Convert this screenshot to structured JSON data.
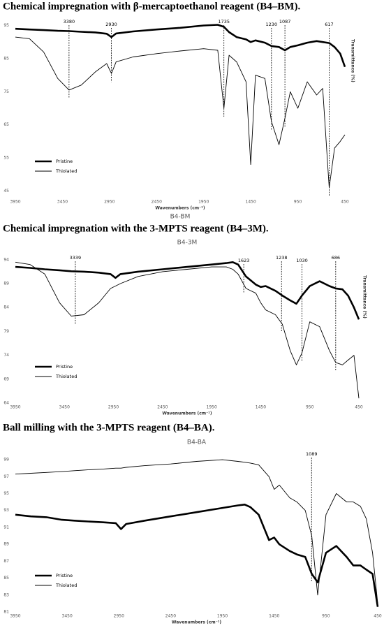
{
  "chart_data": [
    {
      "type": "line",
      "heading": "Chemical impregnation with β-mercaptoethanol reagent (B4–BM).",
      "title": "B4-BM",
      "x_label": "Wavenumbers (cm⁻¹)",
      "y_label": "Transmittance (%)",
      "x": [
        3950,
        3800,
        3650,
        3500,
        3380,
        3250,
        3100,
        2980,
        2930,
        2880,
        2700,
        2450,
        2200,
        1950,
        1800,
        1735,
        1680,
        1600,
        1500,
        1450,
        1400,
        1300,
        1230,
        1150,
        1087,
        1030,
        950,
        850,
        750,
        686,
        617,
        560,
        500,
        450
      ],
      "series": [
        {
          "name": "Pristine",
          "color": "#000000",
          "line_width": 2.6,
          "values": [
            94,
            93.8,
            93.6,
            93.4,
            93.3,
            93.1,
            92.9,
            92.5,
            91.5,
            92.6,
            93.2,
            93.8,
            94.3,
            95,
            95.2,
            94.6,
            93,
            91.5,
            90.8,
            90,
            90.5,
            89.8,
            88.8,
            88.5,
            87.5,
            88.5,
            89,
            89.8,
            90.3,
            90,
            89.7,
            88.5,
            86.5,
            82.5
          ]
        },
        {
          "name": "Thiolated",
          "color": "#000000",
          "line_width": 0.9,
          "values": [
            91.5,
            91,
            87,
            79,
            75.5,
            77,
            81,
            83.5,
            80.5,
            84,
            85.5,
            86.5,
            87.3,
            88,
            87.5,
            70,
            86,
            84,
            78,
            53,
            80,
            79,
            66,
            59,
            67,
            75,
            70,
            78,
            74,
            76,
            46,
            58,
            60,
            62
          ]
        }
      ],
      "peaks": [
        3380,
        2930,
        1735,
        1230,
        1087,
        617
      ],
      "xlim": [
        3950,
        450
      ],
      "xticks": [
        3950,
        3450,
        2950,
        2450,
        1950,
        1450,
        950,
        450
      ],
      "ylim": [
        43,
        97
      ],
      "yticks": [
        45,
        55,
        65,
        75,
        85,
        95
      ],
      "legend": "lower left"
    },
    {
      "type": "line",
      "heading": "Chemical impregnation with the 3-MPTS reagent (B4–3M).",
      "title": "B4-3M",
      "x_label": "Wavenumbers (cm⁻¹)",
      "y_label": "Transmittance (%)",
      "x": [
        3950,
        3800,
        3650,
        3500,
        3380,
        3250,
        3100,
        2980,
        2930,
        2880,
        2700,
        2450,
        2200,
        1950,
        1800,
        1735,
        1680,
        1600,
        1500,
        1450,
        1400,
        1300,
        1230,
        1150,
        1087,
        1030,
        950,
        850,
        750,
        686,
        617,
        560,
        500,
        450
      ],
      "series": [
        {
          "name": "Pristine",
          "color": "#000000",
          "line_width": 2.6,
          "values": [
            92.5,
            92.3,
            92,
            91.8,
            91.6,
            91.5,
            91.3,
            91,
            90.2,
            91,
            91.5,
            92,
            92.5,
            93,
            93.3,
            93.5,
            93,
            90.5,
            88.8,
            88.3,
            88.5,
            87.5,
            86.5,
            85.5,
            84.8,
            86.5,
            88.5,
            89.5,
            88.5,
            88,
            87.8,
            86.5,
            84,
            81.5
          ]
        },
        {
          "name": "Thiolated",
          "color": "#000000",
          "line_width": 0.9,
          "values": [
            93.5,
            93,
            91,
            85,
            82.2,
            82.5,
            85,
            88,
            88.5,
            89,
            90.5,
            91.5,
            92,
            92.5,
            92.5,
            92,
            91,
            88,
            87,
            85,
            83.5,
            82.5,
            80.5,
            75,
            72,
            74.5,
            81,
            80,
            75,
            72.5,
            72,
            73,
            74,
            65
          ]
        }
      ],
      "peaks": [
        3339,
        1623,
        1238,
        1030,
        686
      ],
      "xlim": [
        3950,
        450
      ],
      "xticks": [
        3950,
        3450,
        2950,
        2450,
        1950,
        1450,
        950,
        450
      ],
      "ylim": [
        64,
        95
      ],
      "yticks": [
        94,
        89,
        84,
        79,
        74,
        69,
        64
      ],
      "legend": "lower left"
    },
    {
      "type": "line",
      "heading": "Ball milling with the 3-MPTS reagent (B4–BA).",
      "title": "B4-BA",
      "x_label": "Wavenumbers (cm⁻¹)",
      "x": [
        3950,
        3800,
        3650,
        3500,
        3380,
        3250,
        3100,
        2980,
        2930,
        2880,
        2700,
        2450,
        2200,
        1950,
        1800,
        1735,
        1680,
        1600,
        1500,
        1450,
        1400,
        1300,
        1230,
        1150,
        1087,
        1030,
        950,
        850,
        750,
        686,
        617,
        560,
        500,
        450
      ],
      "series": [
        {
          "name": "Pristine",
          "color": "#000000",
          "line_width": 2.6,
          "values": [
            92.5,
            92.3,
            92.2,
            91.9,
            91.8,
            91.7,
            91.6,
            91.5,
            90.8,
            91.4,
            91.8,
            92.3,
            92.8,
            93.3,
            93.6,
            93.7,
            93.4,
            92.5,
            89.5,
            89.8,
            89,
            88.2,
            87.8,
            87.5,
            85.5,
            84.5,
            88,
            88.8,
            87.5,
            86.5,
            86.5,
            86,
            85.5,
            81.6
          ]
        },
        {
          "name": "Thiolated",
          "color": "#000000",
          "line_width": 0.9,
          "values": [
            97.3,
            97.4,
            97.5,
            97.6,
            97.7,
            97.8,
            97.9,
            98,
            98,
            98.1,
            98.3,
            98.5,
            98.8,
            99,
            98.8,
            98.7,
            98.6,
            98.4,
            97,
            95.5,
            96,
            94.5,
            94,
            93,
            90,
            83,
            92.5,
            95,
            94,
            94,
            93.5,
            92,
            88,
            82
          ]
        }
      ],
      "peaks": [
        1089
      ],
      "xlim": [
        3950,
        450
      ],
      "xticks": [
        3950,
        3450,
        2950,
        2450,
        1950,
        1450,
        950,
        450
      ],
      "ylim": [
        81,
        100
      ],
      "yticks": [
        99,
        97,
        95,
        93,
        91,
        89,
        87,
        85,
        83,
        81
      ],
      "legend": "lower left"
    }
  ]
}
